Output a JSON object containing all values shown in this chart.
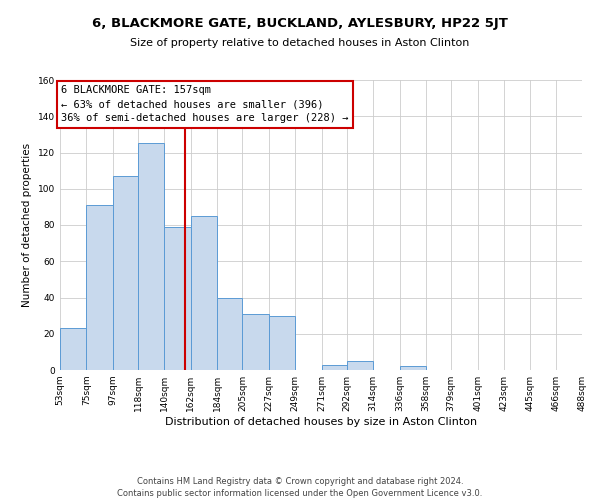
{
  "title": "6, BLACKMORE GATE, BUCKLAND, AYLESBURY, HP22 5JT",
  "subtitle": "Size of property relative to detached houses in Aston Clinton",
  "xlabel": "Distribution of detached houses by size in Aston Clinton",
  "ylabel": "Number of detached properties",
  "bin_edges": [
    53,
    75,
    97,
    118,
    140,
    162,
    184,
    205,
    227,
    249,
    271,
    292,
    314,
    336,
    358,
    379,
    401,
    423,
    445,
    466,
    488
  ],
  "bin_counts": [
    23,
    91,
    107,
    125,
    79,
    85,
    40,
    31,
    30,
    0,
    3,
    5,
    0,
    2,
    0,
    0,
    0,
    0,
    0,
    0
  ],
  "bar_color": "#c8d9ed",
  "bar_edge_color": "#5b9bd5",
  "vline_x": 157,
  "vline_color": "#cc0000",
  "annotation_title": "6 BLACKMORE GATE: 157sqm",
  "annotation_line1": "← 63% of detached houses are smaller (396)",
  "annotation_line2": "36% of semi-detached houses are larger (228) →",
  "annotation_box_edge": "#cc0000",
  "ylim": [
    0,
    160
  ],
  "yticks": [
    0,
    20,
    40,
    60,
    80,
    100,
    120,
    140,
    160
  ],
  "tick_labels": [
    "53sqm",
    "75sqm",
    "97sqm",
    "118sqm",
    "140sqm",
    "162sqm",
    "184sqm",
    "205sqm",
    "227sqm",
    "249sqm",
    "271sqm",
    "292sqm",
    "314sqm",
    "336sqm",
    "358sqm",
    "379sqm",
    "401sqm",
    "423sqm",
    "445sqm",
    "466sqm",
    "488sqm"
  ],
  "footer_line1": "Contains HM Land Registry data © Crown copyright and database right 2024.",
  "footer_line2": "Contains public sector information licensed under the Open Government Licence v3.0.",
  "grid_color": "#cccccc",
  "bg_color": "#ffffff",
  "title_fontsize": 9.5,
  "subtitle_fontsize": 8,
  "ylabel_fontsize": 7.5,
  "xlabel_fontsize": 8,
  "tick_fontsize": 6.5,
  "annotation_fontsize": 7.5,
  "footer_fontsize": 6
}
